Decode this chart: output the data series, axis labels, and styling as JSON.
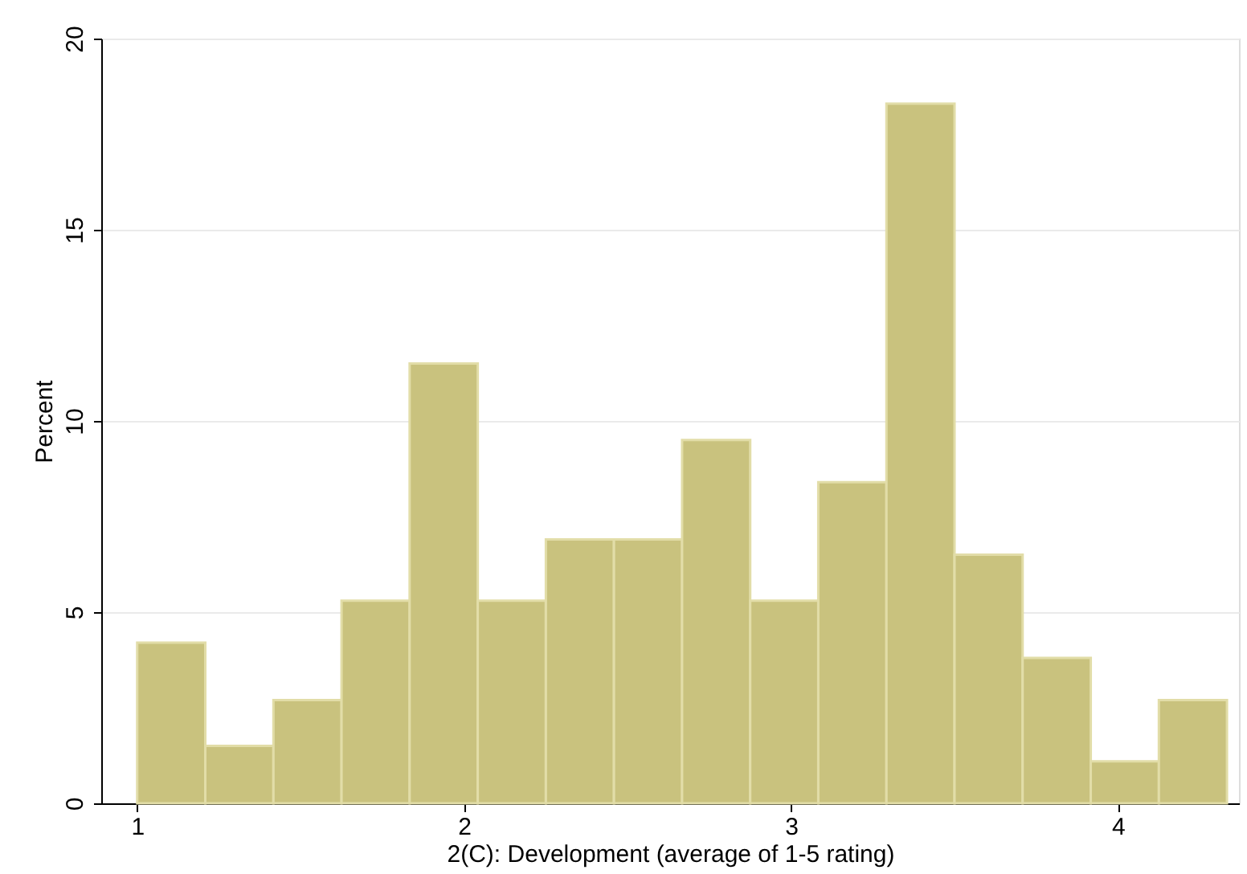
{
  "chart_data": {
    "type": "histogram",
    "xlabel": "2(C): Development (average of 1-5 rating)",
    "ylabel": "Percent",
    "bins": [
      1,
      1.2083,
      1.4167,
      1.625,
      1.8333,
      2.0417,
      2.25,
      2.4583,
      2.6667,
      2.875,
      3.0833,
      3.2917,
      3.5,
      3.7083,
      3.9167,
      4.125,
      4.3333
    ],
    "values": [
      4.2,
      1.5,
      2.7,
      5.3,
      11.5,
      5.3,
      6.9,
      6.9,
      9.5,
      5.3,
      8.4,
      18.3,
      6.5,
      3.8,
      1.1,
      2.7
    ],
    "color": "#c9c27e",
    "xlim": [
      0.89,
      4.37
    ],
    "xticks": [
      1,
      2,
      3,
      4
    ],
    "ylim": [
      0,
      20
    ],
    "yticks": [
      0,
      5,
      10,
      15,
      20
    ],
    "grid": "y"
  }
}
